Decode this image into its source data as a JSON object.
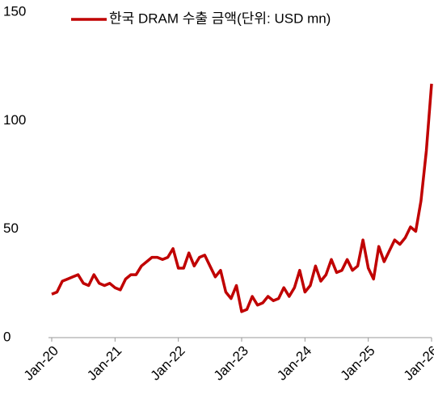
{
  "chart_data": {
    "type": "line",
    "categories": [
      "Jan-20",
      null,
      null,
      null,
      null,
      null,
      null,
      null,
      null,
      null,
      null,
      null,
      "Jan-21",
      null,
      null,
      null,
      null,
      null,
      null,
      null,
      null,
      null,
      null,
      null,
      "Jan-22",
      null,
      null,
      null,
      null,
      null,
      null,
      null,
      null,
      null,
      null,
      null,
      "Jan-23",
      null,
      null,
      null,
      null,
      null,
      null,
      null,
      null,
      null,
      null,
      null,
      "Jan-24",
      null,
      null,
      null,
      null,
      null,
      null,
      null,
      null,
      null,
      null,
      null,
      "Jan-25",
      null,
      null,
      null,
      null,
      null,
      null,
      null,
      null,
      null,
      null,
      null,
      "Jan-26"
    ],
    "series": [
      {
        "name": "한국 DRAM 수출 금액(단위: USD mn)",
        "color": "#c00000",
        "values": [
          20,
          21,
          26,
          27,
          28,
          29,
          25,
          24,
          29,
          25,
          24,
          25,
          23,
          22,
          27,
          29,
          29,
          33,
          35,
          37,
          37,
          36,
          37,
          41,
          32,
          32,
          39,
          33,
          37,
          38,
          33,
          28,
          31,
          21,
          18,
          24,
          12,
          13,
          19,
          15,
          16,
          19,
          17,
          18,
          23,
          19,
          23,
          31,
          21,
          24,
          33,
          26,
          29,
          36,
          30,
          31,
          36,
          31,
          33,
          45,
          32,
          27,
          42,
          35,
          40,
          45,
          43,
          46,
          51,
          49,
          63,
          86,
          117
        ]
      }
    ],
    "ylim": [
      0,
      150
    ],
    "yticks": [
      0,
      50,
      100,
      150
    ],
    "grid": false,
    "legend": "top"
  }
}
